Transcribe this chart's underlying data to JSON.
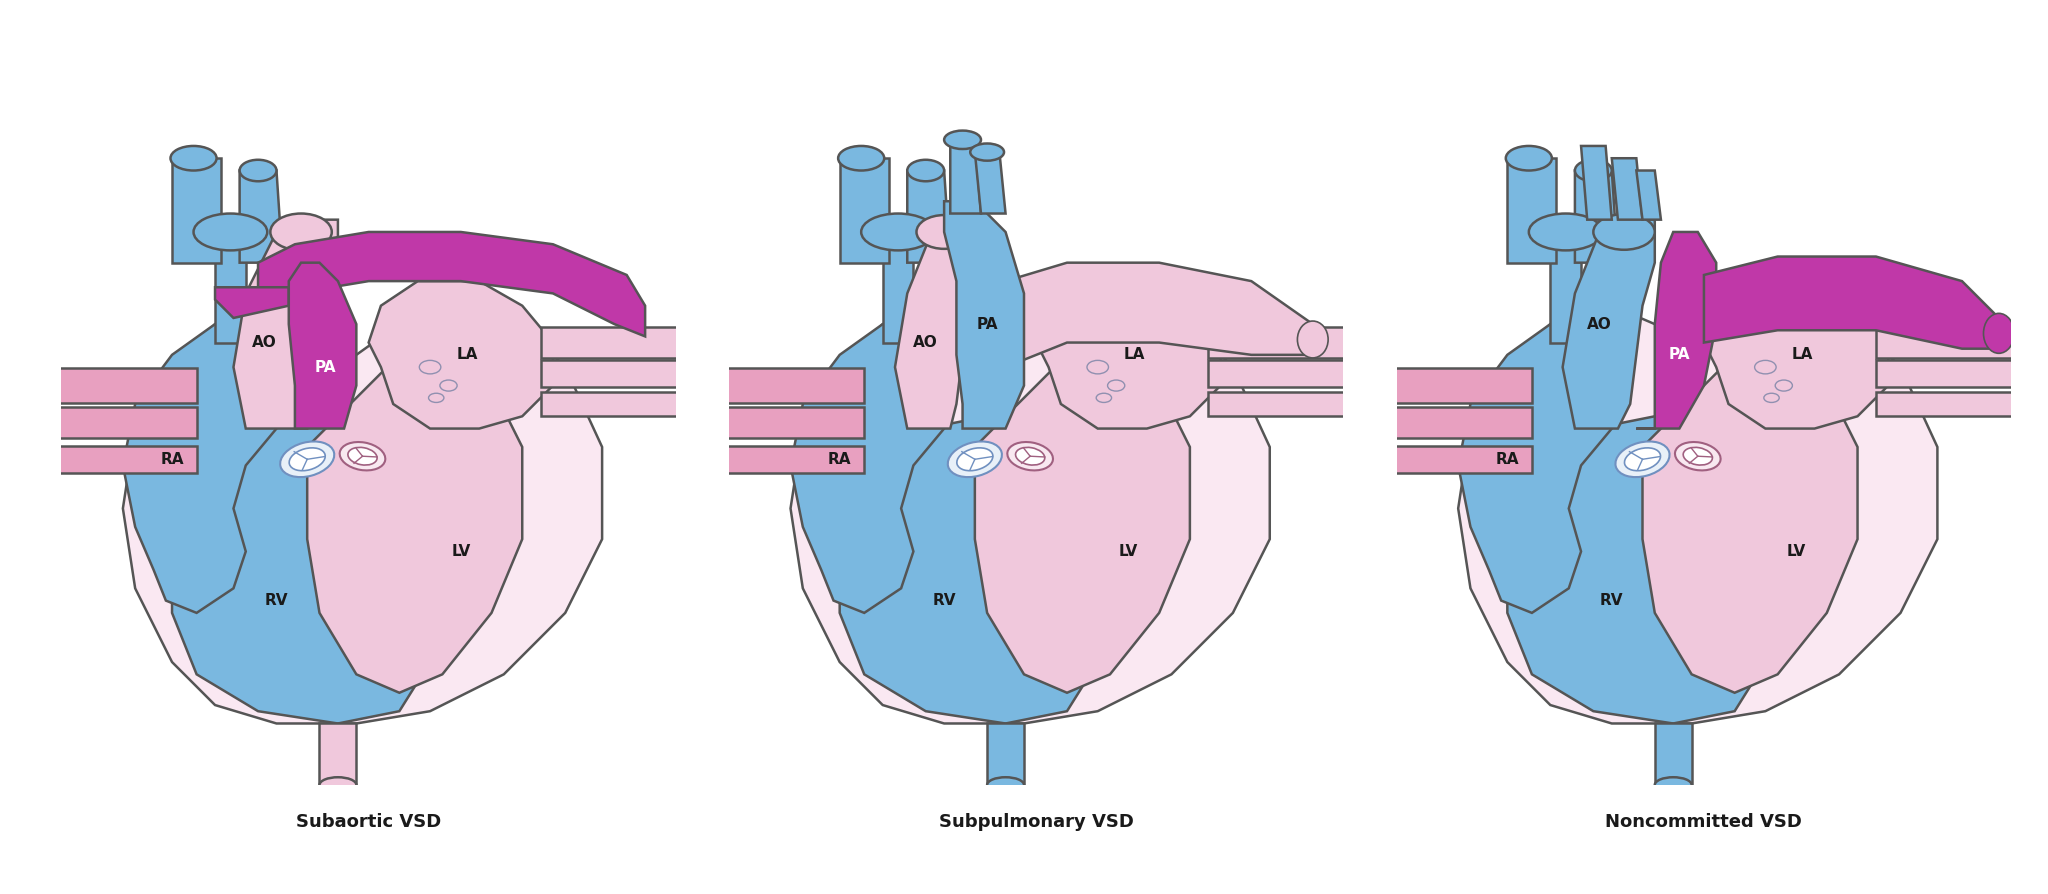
{
  "subtitles": [
    "Subaortic VSD",
    "Subpulmonary VSD",
    "Noncommitted VSD"
  ],
  "bg": "#ffffff",
  "blue": "#7ab8e0",
  "pink_light": "#f0c8dc",
  "pink": "#e8a0c0",
  "purple": "#c038a8",
  "outline": "#555555",
  "lw": 1.8,
  "label_fs": 11,
  "subtitle_fs": 13
}
